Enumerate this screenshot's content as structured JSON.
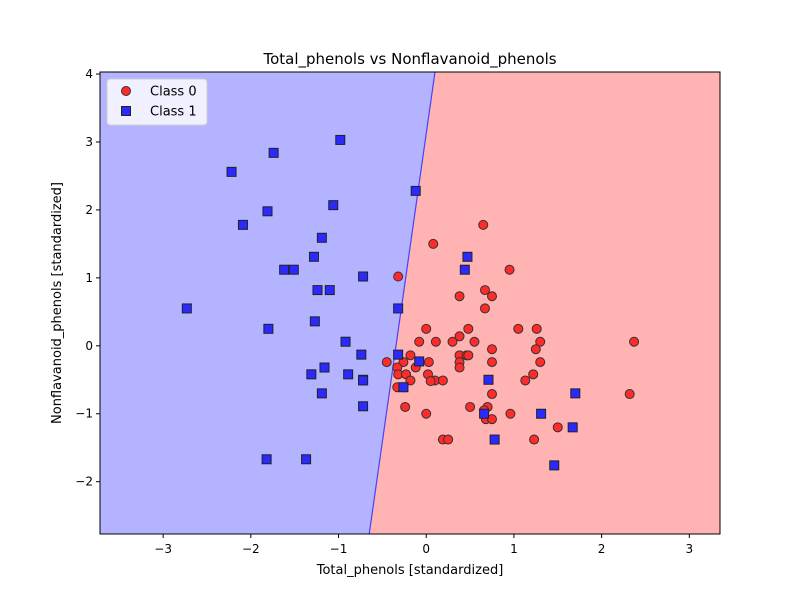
{
  "chart_data": {
    "type": "scatter",
    "title": "Total_phenols vs Nonflavanoid_phenols",
    "xlabel": "Total_phenols [standardized]",
    "ylabel": "Nonflavanoid_phenols [standardized]",
    "xlim": [
      -3.72,
      3.35
    ],
    "ylim": [
      -2.77,
      4.03
    ],
    "xticks": [
      -3,
      -2,
      -1,
      0,
      1,
      2,
      3
    ],
    "xtick_labels": [
      "−3",
      "−2",
      "−1",
      "0",
      "1",
      "2",
      "3"
    ],
    "yticks": [
      -2,
      -1,
      0,
      1,
      2,
      3,
      4
    ],
    "ytick_labels": [
      "−2",
      "−1",
      "0",
      "1",
      "2",
      "3",
      "4"
    ],
    "grid": false,
    "legend_position": "upper-left",
    "decision_regions": {
      "boundary_line": [
        [
          -0.65,
          -2.77
        ],
        [
          0.1,
          4.03
        ]
      ],
      "left_region": {
        "label": "Class 1",
        "color": "#b3b3ff"
      },
      "right_region": {
        "label": "Class 0",
        "color": "#ffb3b3"
      },
      "boundary_color": "#4444ff"
    },
    "series": [
      {
        "name": "Class 0",
        "marker": "circle",
        "color": "#ff2a2a",
        "edge": "#333333",
        "points": [
          [
            0.65,
            1.78
          ],
          [
            0.08,
            1.5
          ],
          [
            0.95,
            1.12
          ],
          [
            -0.32,
            1.02
          ],
          [
            0.67,
            0.82
          ],
          [
            0.75,
            0.73
          ],
          [
            0.38,
            0.73
          ],
          [
            0.67,
            0.55
          ],
          [
            0.0,
            0.25
          ],
          [
            0.48,
            0.25
          ],
          [
            1.05,
            0.25
          ],
          [
            1.26,
            0.25
          ],
          [
            -0.08,
            0.06
          ],
          [
            0.11,
            0.06
          ],
          [
            0.3,
            0.06
          ],
          [
            0.55,
            0.06
          ],
          [
            1.3,
            0.06
          ],
          [
            2.37,
            0.06
          ],
          [
            0.38,
            0.14
          ],
          [
            0.75,
            -0.05
          ],
          [
            1.25,
            -0.05
          ],
          [
            -0.18,
            -0.14
          ],
          [
            0.38,
            -0.14
          ],
          [
            0.46,
            -0.14
          ],
          [
            0.48,
            -0.14
          ],
          [
            -0.45,
            -0.24
          ],
          [
            -0.26,
            -0.24
          ],
          [
            0.03,
            -0.24
          ],
          [
            0.38,
            -0.24
          ],
          [
            0.75,
            -0.24
          ],
          [
            1.3,
            -0.24
          ],
          [
            -0.33,
            -0.32
          ],
          [
            -0.12,
            -0.32
          ],
          [
            0.38,
            -0.32
          ],
          [
            -0.32,
            -0.42
          ],
          [
            -0.23,
            -0.42
          ],
          [
            0.02,
            -0.42
          ],
          [
            1.22,
            -0.42
          ],
          [
            -0.18,
            -0.51
          ],
          [
            0.1,
            -0.51
          ],
          [
            0.19,
            -0.51
          ],
          [
            1.13,
            -0.51
          ],
          [
            0.05,
            -0.52
          ],
          [
            -0.33,
            -0.61
          ],
          [
            -0.26,
            -0.61
          ],
          [
            0.75,
            -0.71
          ],
          [
            2.32,
            -0.71
          ],
          [
            -0.24,
            -0.9
          ],
          [
            0.5,
            -0.9
          ],
          [
            0.7,
            -0.9
          ],
          [
            0.66,
            -0.95
          ],
          [
            0.0,
            -1.0
          ],
          [
            0.96,
            -1.0
          ],
          [
            0.68,
            -1.08
          ],
          [
            0.75,
            -1.08
          ],
          [
            1.5,
            -1.2
          ],
          [
            0.19,
            -1.38
          ],
          [
            0.25,
            -1.38
          ],
          [
            1.23,
            -1.38
          ]
        ]
      },
      {
        "name": "Class 1",
        "marker": "square",
        "color": "#2a2aff",
        "edge": "#222222",
        "points": [
          [
            -0.98,
            3.03
          ],
          [
            -1.74,
            2.84
          ],
          [
            -2.22,
            2.56
          ],
          [
            -0.12,
            2.28
          ],
          [
            -1.81,
            1.98
          ],
          [
            -1.06,
            2.07
          ],
          [
            -2.09,
            1.78
          ],
          [
            -1.19,
            1.59
          ],
          [
            -1.28,
            1.31
          ],
          [
            0.47,
            1.31
          ],
          [
            -1.62,
            1.12
          ],
          [
            -1.51,
            1.12
          ],
          [
            0.44,
            1.12
          ],
          [
            -0.72,
            1.02
          ],
          [
            -1.24,
            0.82
          ],
          [
            -1.1,
            0.82
          ],
          [
            -2.73,
            0.55
          ],
          [
            -0.32,
            0.55
          ],
          [
            -1.27,
            0.36
          ],
          [
            -1.8,
            0.25
          ],
          [
            -0.92,
            0.06
          ],
          [
            -0.74,
            -0.13
          ],
          [
            -0.32,
            -0.13
          ],
          [
            -0.08,
            -0.23
          ],
          [
            -1.31,
            -0.42
          ],
          [
            -0.89,
            -0.42
          ],
          [
            -1.16,
            -0.32
          ],
          [
            -0.72,
            -0.5
          ],
          [
            -0.72,
            -0.51
          ],
          [
            -0.26,
            -0.61
          ],
          [
            0.71,
            -0.5
          ],
          [
            -1.19,
            -0.7
          ],
          [
            -0.72,
            -0.89
          ],
          [
            0.66,
            -1.0
          ],
          [
            1.31,
            -1.0
          ],
          [
            1.7,
            -0.7
          ],
          [
            1.67,
            -1.2
          ],
          [
            0.78,
            -1.38
          ],
          [
            -1.82,
            -1.67
          ],
          [
            -1.37,
            -1.67
          ],
          [
            1.46,
            -1.76
          ]
        ]
      }
    ]
  }
}
